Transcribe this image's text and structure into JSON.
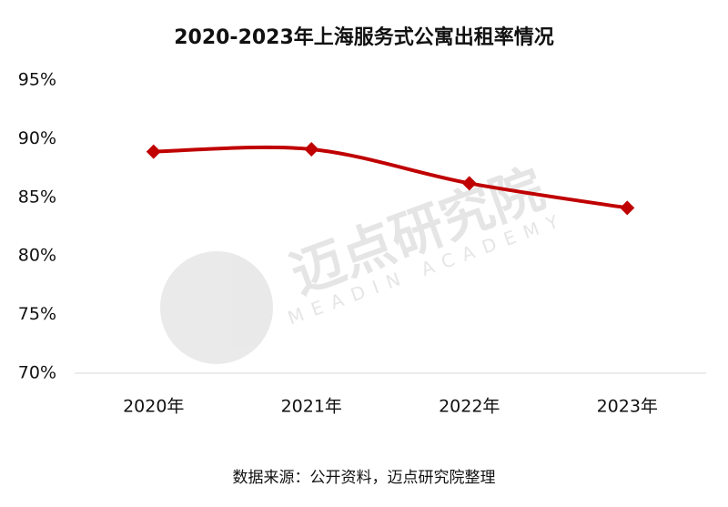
{
  "chart_data": {
    "type": "line",
    "title": "2020-2023年上海服务式公寓出租率情况",
    "categories": [
      "2020年",
      "2021年",
      "2022年",
      "2023年"
    ],
    "series": [
      {
        "name": "出租率",
        "color": "#c00000",
        "values": [
          88.9,
          89.1,
          86.2,
          84.1
        ]
      }
    ],
    "ylim": [
      70,
      95
    ],
    "yticks": [
      {
        "value": 70,
        "label": "70%"
      },
      {
        "value": 75,
        "label": "75%"
      },
      {
        "value": 80,
        "label": "80%"
      },
      {
        "value": 85,
        "label": "85%"
      },
      {
        "value": 90,
        "label": "90%"
      },
      {
        "value": 95,
        "label": "95%"
      }
    ],
    "grid": false,
    "smooth": true,
    "source": "数据来源：公开资料，迈点研究院整理",
    "watermark": {
      "text": "迈点研究院",
      "subtext": "MEADIN ACADEMY"
    }
  }
}
